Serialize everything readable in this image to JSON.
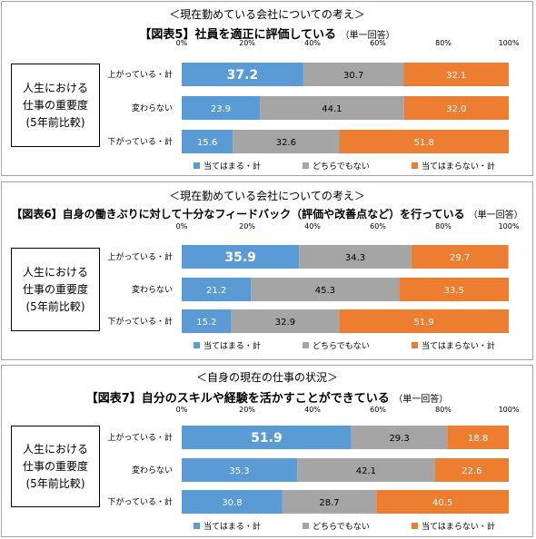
{
  "colors": {
    "yes": "#5b9bd5",
    "neutral": "#a5a5a5",
    "no": "#ed7d31"
  },
  "ticks": [
    "0%",
    "20%",
    "40%",
    "60%",
    "80%",
    "100%"
  ],
  "chart_data": [
    {
      "type": "bar",
      "subtitle": "＜現在勤めている会社についての考え＞",
      "title": "【図表5】社員を適正に評価している",
      "unit_note": "（単一回答）",
      "row_group_label": [
        "人生における",
        "仕事の重要度",
        "(5年前比較)"
      ],
      "categories": [
        "上がっている・計",
        "変わらない",
        "下がっている・計"
      ],
      "series": [
        {
          "name": "当てはまる・計",
          "values": [
            37.2,
            23.9,
            15.6
          ]
        },
        {
          "name": "どちらでもない",
          "values": [
            30.7,
            44.1,
            32.6
          ]
        },
        {
          "name": "当てはまらない・計",
          "values": [
            32.1,
            32.0,
            51.8
          ]
        }
      ],
      "ylim": [
        0,
        100
      ]
    },
    {
      "type": "bar",
      "subtitle": "＜現在勤めている会社についての考え＞",
      "title": "【図表6】自身の働きぶりに対して十分なフィードバック（評価や改善点など）を行っている",
      "unit_note": "（単一回答）",
      "row_group_label": [
        "人生における",
        "仕事の重要度",
        "(5年前比較)"
      ],
      "categories": [
        "上がっている・計",
        "変わらない",
        "下がっている・計"
      ],
      "series": [
        {
          "name": "当てはまる・計",
          "values": [
            35.9,
            21.2,
            15.2
          ]
        },
        {
          "name": "どちらでもない",
          "values": [
            34.3,
            45.3,
            32.9
          ]
        },
        {
          "name": "当てはまらない・計",
          "values": [
            29.7,
            33.5,
            51.9
          ]
        }
      ],
      "ylim": [
        0,
        100
      ]
    },
    {
      "type": "bar",
      "subtitle": "＜自身の現在の仕事の状況＞",
      "title": "【図表7】自分のスキルや経験を活かすことができている",
      "unit_note": "（単一回答）",
      "row_group_label": [
        "人生における",
        "仕事の重要度",
        "(5年前比較)"
      ],
      "categories": [
        "上がっている・計",
        "変わらない",
        "下がっている・計"
      ],
      "series": [
        {
          "name": "当てはまる・計",
          "values": [
            51.9,
            35.3,
            30.8
          ]
        },
        {
          "name": "どちらでもない",
          "values": [
            29.3,
            42.1,
            28.7
          ]
        },
        {
          "name": "当てはまらない・計",
          "values": [
            18.8,
            22.6,
            40.5
          ]
        }
      ],
      "ylim": [
        0,
        100
      ]
    }
  ]
}
